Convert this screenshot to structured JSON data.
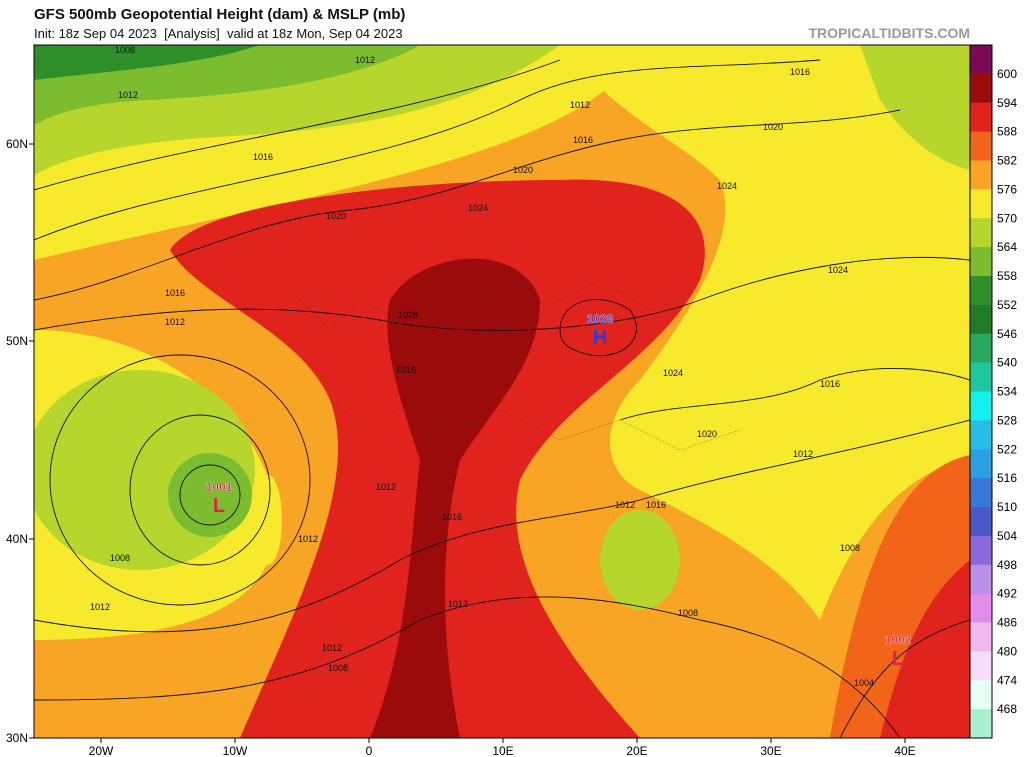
{
  "header": {
    "title": "GFS 500mb Geopotential Height (dam) & MSLP (mb)",
    "subtitle": "Init: 18z Sep 04 2023  [Analysis]  valid at 18z Mon, Sep 04 2023",
    "source": "TROPICALTIDBITS.COM"
  },
  "axes": {
    "lat_labels": [
      "60N",
      "50N",
      "40N",
      "30N"
    ],
    "lon_labels": [
      "20W",
      "10W",
      "0",
      "10E",
      "20E",
      "30E",
      "40E"
    ]
  },
  "colorbar": {
    "levels": [
      "600",
      "594",
      "588",
      "582",
      "576",
      "570",
      "564",
      "558",
      "552",
      "546",
      "540",
      "534",
      "528",
      "522",
      "516",
      "510",
      "504",
      "498",
      "492",
      "486",
      "480",
      "474",
      "468"
    ],
    "colors": [
      "#7a0a55",
      "#9c0b0b",
      "#e0231c",
      "#f2641a",
      "#f8a424",
      "#f7ea2d",
      "#b6d62e",
      "#7bbd2f",
      "#2e8f2a",
      "#1f7a2a",
      "#2aa860",
      "#1fc7a0",
      "#12f0f0",
      "#28bde8",
      "#2aa0e0",
      "#3978d8",
      "#4a58c8",
      "#8a6ad8",
      "#b890e8",
      "#e08ce8",
      "#f0b6f0",
      "#f6dcf8",
      "#e6fff4",
      "#a8f0d0"
    ]
  },
  "pressure_centers": [
    {
      "value": "1028",
      "symbol": "H"
    },
    {
      "value": "1001",
      "symbol": "L"
    },
    {
      "value": "1002",
      "symbol": "L"
    }
  ],
  "isobar_labels": [
    "1008",
    "1012",
    "1012",
    "1016",
    "1020",
    "1016",
    "1012",
    "1012",
    "1016",
    "1020",
    "1024",
    "1024",
    "1016",
    "1020",
    "1024",
    "1028",
    "1016",
    "1024",
    "1016",
    "1020",
    "1012",
    "1012",
    "1012",
    "1016",
    "1012",
    "1016",
    "1008",
    "1012",
    "1012",
    "1008",
    "1008",
    "1012",
    "1008",
    "1004"
  ]
}
